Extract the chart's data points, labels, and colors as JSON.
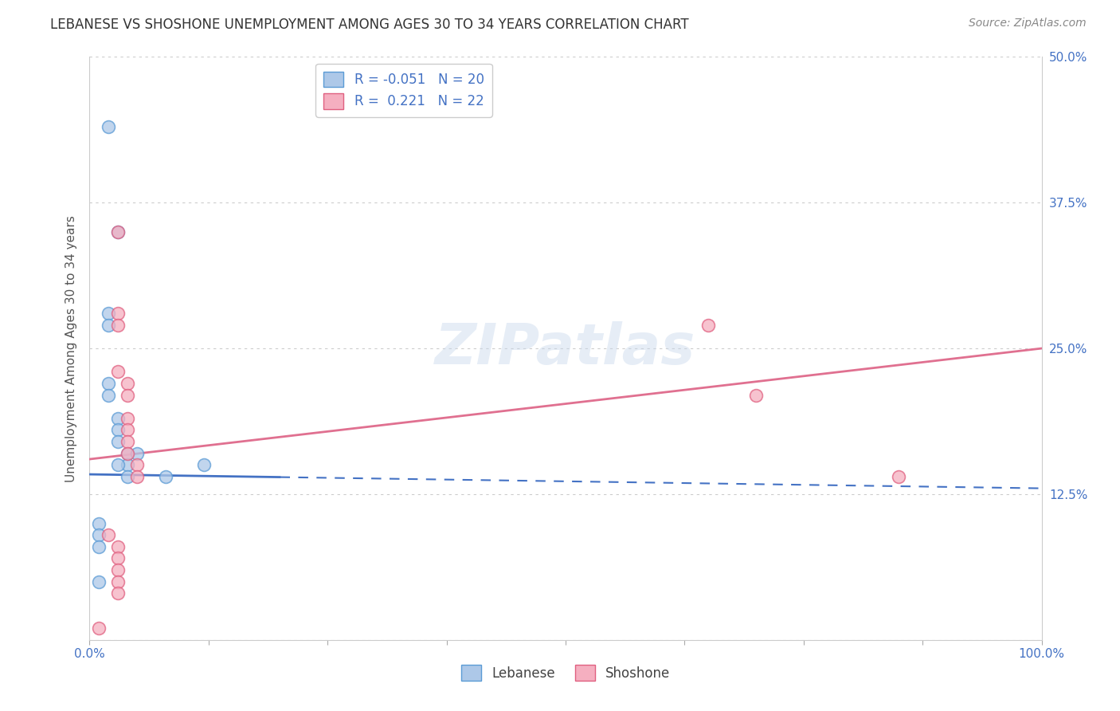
{
  "title": "LEBANESE VS SHOSHONE UNEMPLOYMENT AMONG AGES 30 TO 34 YEARS CORRELATION CHART",
  "source": "Source: ZipAtlas.com",
  "ylabel": "Unemployment Among Ages 30 to 34 years",
  "background_color": "#ffffff",
  "grid_color": "#cccccc",
  "watermark_text": "ZIPatlas",
  "legend_R_lebanese": "-0.051",
  "legend_N_lebanese": "20",
  "legend_R_shoshone": "0.221",
  "legend_N_shoshone": "22",
  "lebanese_color": "#adc8e8",
  "shoshone_color": "#f5afc0",
  "lebanese_edge_color": "#5b9bd5",
  "shoshone_edge_color": "#e06080",
  "lebanese_line_color": "#4472c4",
  "shoshone_line_color": "#e07090",
  "lebanese_scatter": [
    [
      2,
      44
    ],
    [
      3,
      35
    ],
    [
      2,
      28
    ],
    [
      2,
      27
    ],
    [
      2,
      22
    ],
    [
      2,
      21
    ],
    [
      3,
      19
    ],
    [
      3,
      18
    ],
    [
      3,
      17
    ],
    [
      4,
      16
    ],
    [
      4,
      15
    ],
    [
      4,
      14
    ],
    [
      3,
      15
    ],
    [
      5,
      16
    ],
    [
      8,
      14
    ],
    [
      12,
      15
    ],
    [
      1,
      10
    ],
    [
      1,
      9
    ],
    [
      1,
      8
    ],
    [
      1,
      5
    ]
  ],
  "shoshone_scatter": [
    [
      3,
      35
    ],
    [
      3,
      28
    ],
    [
      3,
      27
    ],
    [
      3,
      23
    ],
    [
      4,
      22
    ],
    [
      4,
      21
    ],
    [
      4,
      19
    ],
    [
      4,
      18
    ],
    [
      4,
      17
    ],
    [
      4,
      16
    ],
    [
      5,
      15
    ],
    [
      5,
      14
    ],
    [
      65,
      27
    ],
    [
      70,
      21
    ],
    [
      85,
      14
    ],
    [
      1,
      1
    ],
    [
      2,
      9
    ],
    [
      3,
      8
    ],
    [
      3,
      7
    ],
    [
      3,
      6
    ],
    [
      3,
      5
    ],
    [
      3,
      4
    ]
  ],
  "leb_line_x0": 0,
  "leb_line_x1": 100,
  "leb_line_y0": 14.2,
  "leb_line_y1": 13.0,
  "leb_solid_end_x": 20,
  "leb_solid_end_y": 14.0,
  "sho_line_x0": 0,
  "sho_line_x1": 100,
  "sho_line_y0": 15.5,
  "sho_line_y1": 25.0,
  "xlim": [
    0,
    100
  ],
  "ylim": [
    0,
    50
  ],
  "xtick_positions": [
    0,
    12.5,
    25,
    37.5,
    50,
    62.5,
    75,
    87.5,
    100
  ],
  "xtick_labels": [
    "0.0%",
    "",
    "",
    "",
    "",
    "",
    "",
    "",
    "100.0%"
  ],
  "ytick_positions": [
    0,
    12.5,
    25,
    37.5,
    50
  ],
  "right_ytick_positions": [
    12.5,
    25,
    37.5,
    50
  ],
  "right_ytick_labels": [
    "12.5%",
    "25.0%",
    "37.5%",
    "50.0%"
  ],
  "tick_color": "#4472c4",
  "title_fontsize": 12,
  "axis_label_fontsize": 11,
  "tick_fontsize": 11,
  "scatter_size": 130,
  "scatter_alpha": 0.75,
  "scatter_linewidth": 1.2
}
